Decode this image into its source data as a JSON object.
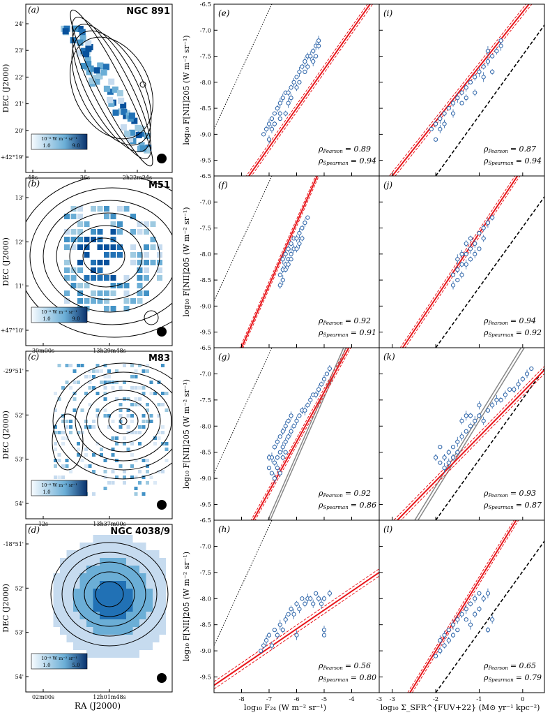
{
  "figure": {
    "x_axis_label_maps": "RA (J2000)",
    "y_axis_label_maps": "DEC (J2000)",
    "x_axis_label_mid": "log₁₀ F₂₄ (W m⁻² sr⁻¹)",
    "x_axis_label_right": "log₁₀ Σ_SFR^{FUV+22} (M⊙ yr⁻¹ kpc⁻²)",
    "y_axis_label_scatter": "log₁₀ F[NII]205 (W m⁻² sr⁻¹)",
    "colorbar_unit": "10⁻⁸ W m⁻² sr⁻¹"
  },
  "maps": [
    {
      "id": "a",
      "label": "(a)",
      "galaxy": "NGC 891",
      "dec_ticks": [
        "24'",
        "23'",
        "22'",
        "21'",
        "20'",
        "+42°19'"
      ],
      "ra_ticks": [
        "48s",
        "36s",
        "2h22m24s"
      ],
      "cbar_ticks": [
        "1.0",
        "9.0"
      ]
    },
    {
      "id": "b",
      "label": "(b)",
      "galaxy": "M51",
      "dec_ticks": [
        "13'",
        "12'",
        "11'",
        "+47°10'"
      ],
      "ra_ticks": [
        "30m00s",
        "13h29m48s"
      ],
      "cbar_ticks": [
        "1.0",
        "9.0"
      ]
    },
    {
      "id": "c",
      "label": "(c)",
      "galaxy": "M83",
      "dec_ticks": [
        "-29°51'",
        "52'",
        "53'",
        "54'"
      ],
      "ra_ticks": [
        "12s",
        "13h37m00s"
      ],
      "cbar_ticks": [
        "1.0"
      ]
    },
    {
      "id": "d",
      "label": "(d)",
      "galaxy": "NGC 4038/9",
      "dec_ticks": [
        "-18°51'",
        "52'",
        "53'",
        "54'"
      ],
      "ra_ticks": [
        "02m00s",
        "12h01m48s"
      ],
      "cbar_ticks": [
        "1.0",
        "5.0"
      ]
    }
  ],
  "chart_data": [
    {
      "type": "scatter",
      "panel": "(e)",
      "galaxy": "NGC 891",
      "x_quantity": "log10 F24",
      "xlim": [
        -9,
        -3
      ],
      "ylim": [
        -9.8,
        -6.5
      ],
      "pearson": "= 0.89",
      "spearman": "= 0.94",
      "fit": {
        "slope": 0.75,
        "intercept": -4.0
      },
      "points": [
        [
          -7.2,
          -9.0
        ],
        [
          -7.1,
          -8.9
        ],
        [
          -7.0,
          -8.8
        ],
        [
          -6.9,
          -8.7
        ],
        [
          -6.9,
          -8.9
        ],
        [
          -6.8,
          -8.6
        ],
        [
          -6.7,
          -8.5
        ],
        [
          -6.6,
          -8.4
        ],
        [
          -6.6,
          -8.6
        ],
        [
          -6.5,
          -8.3
        ],
        [
          -6.4,
          -8.2
        ],
        [
          -6.3,
          -8.2
        ],
        [
          -6.3,
          -8.4
        ],
        [
          -6.2,
          -8.1
        ],
        [
          -6.1,
          -8.0
        ],
        [
          -6.0,
          -7.9
        ],
        [
          -6.0,
          -8.1
        ],
        [
          -5.9,
          -7.8
        ],
        [
          -5.8,
          -7.7
        ],
        [
          -5.7,
          -7.6
        ],
        [
          -5.7,
          -7.8
        ],
        [
          -5.6,
          -7.5
        ],
        [
          -5.5,
          -7.5
        ],
        [
          -5.4,
          -7.4
        ],
        [
          -5.3,
          -7.3
        ],
        [
          -5.3,
          -7.5
        ],
        [
          -5.2,
          -7.3
        ],
        [
          -5.2,
          -7.2
        ],
        [
          -6.4,
          -8.6
        ],
        [
          -6.2,
          -8.3
        ],
        [
          -5.9,
          -8.0
        ],
        [
          -5.6,
          -7.7
        ],
        [
          -5.4,
          -7.6
        ],
        [
          -6.8,
          -8.8
        ],
        [
          -7.0,
          -9.1
        ],
        [
          -6.6,
          -8.7
        ]
      ]
    },
    {
      "type": "scatter",
      "panel": "(i)",
      "galaxy": "NGC 891",
      "x_quantity": "log10 SFR",
      "xlim": [
        -3.3,
        0.5
      ],
      "ylim": [
        -9.8,
        -6.5
      ],
      "pearson": "= 0.87",
      "spearman": "= 0.94",
      "fit": {
        "slope": 1.05,
        "intercept": -6.65
      },
      "points": [
        [
          -2.1,
          -8.9
        ],
        [
          -2.0,
          -8.8
        ],
        [
          -1.9,
          -8.7
        ],
        [
          -1.8,
          -8.6
        ],
        [
          -1.8,
          -8.8
        ],
        [
          -1.7,
          -8.5
        ],
        [
          -1.6,
          -8.4
        ],
        [
          -1.5,
          -8.3
        ],
        [
          -1.4,
          -8.2
        ],
        [
          -1.3,
          -8.1
        ],
        [
          -1.2,
          -8.0
        ],
        [
          -1.1,
          -7.9
        ],
        [
          -1.0,
          -7.8
        ],
        [
          -0.9,
          -7.7
        ],
        [
          -0.8,
          -7.6
        ],
        [
          -0.7,
          -7.5
        ],
        [
          -0.6,
          -7.4
        ],
        [
          -0.5,
          -7.3
        ],
        [
          -0.5,
          -7.2
        ],
        [
          -1.6,
          -8.6
        ],
        [
          -1.4,
          -8.4
        ],
        [
          -1.1,
          -8.2
        ],
        [
          -0.9,
          -7.9
        ],
        [
          -0.7,
          -7.8
        ],
        [
          -1.9,
          -8.9
        ],
        [
          -2.0,
          -9.1
        ],
        [
          -1.3,
          -8.3
        ],
        [
          -0.8,
          -7.4
        ]
      ]
    },
    {
      "type": "scatter",
      "panel": "(f)",
      "galaxy": "M51",
      "x_quantity": "log10 F24",
      "xlim": [
        -9,
        -3
      ],
      "ylim": [
        -9.8,
        -6.5
      ],
      "pearson": "= 0.92",
      "spearman": "= 0.91",
      "fit": {
        "slope": 1.2,
        "intercept": -0.2
      },
      "points": [
        [
          -6.6,
          -8.4
        ],
        [
          -6.5,
          -8.3
        ],
        [
          -6.5,
          -8.1
        ],
        [
          -6.4,
          -8.2
        ],
        [
          -6.4,
          -8.0
        ],
        [
          -6.3,
          -8.1
        ],
        [
          -6.3,
          -7.9
        ],
        [
          -6.2,
          -8.0
        ],
        [
          -6.2,
          -7.8
        ],
        [
          -6.1,
          -7.9
        ],
        [
          -6.1,
          -7.7
        ],
        [
          -6.0,
          -7.7
        ],
        [
          -5.9,
          -7.6
        ],
        [
          -5.8,
          -7.5
        ],
        [
          -5.7,
          -7.4
        ],
        [
          -5.6,
          -7.3
        ],
        [
          -6.6,
          -8.6
        ],
        [
          -6.5,
          -8.5
        ],
        [
          -6.4,
          -8.3
        ],
        [
          -6.3,
          -8.2
        ],
        [
          -6.2,
          -8.1
        ],
        [
          -6.0,
          -7.9
        ],
        [
          -5.9,
          -7.8
        ],
        [
          -5.8,
          -7.7
        ]
      ]
    },
    {
      "type": "scatter",
      "panel": "(j)",
      "galaxy": "M51",
      "x_quantity": "log10 SFR",
      "xlim": [
        -3.3,
        0.5
      ],
      "ylim": [
        -9.8,
        -6.5
      ],
      "pearson": "= 0.94",
      "spearman": "= 0.92",
      "fit": {
        "slope": 1.25,
        "intercept": -6.35
      },
      "points": [
        [
          -1.6,
          -8.4
        ],
        [
          -1.5,
          -8.3
        ],
        [
          -1.5,
          -8.1
        ],
        [
          -1.4,
          -8.2
        ],
        [
          -1.4,
          -8.0
        ],
        [
          -1.3,
          -8.0
        ],
        [
          -1.3,
          -7.8
        ],
        [
          -1.2,
          -7.9
        ],
        [
          -1.2,
          -7.7
        ],
        [
          -1.1,
          -7.8
        ],
        [
          -1.0,
          -7.6
        ],
        [
          -0.9,
          -7.5
        ],
        [
          -0.8,
          -7.4
        ],
        [
          -0.7,
          -7.3
        ],
        [
          -1.6,
          -8.6
        ],
        [
          -1.5,
          -8.5
        ],
        [
          -1.4,
          -8.4
        ],
        [
          -1.3,
          -8.2
        ],
        [
          -1.2,
          -8.1
        ],
        [
          -1.1,
          -8.0
        ],
        [
          -1.0,
          -7.9
        ],
        [
          -0.9,
          -7.7
        ]
      ]
    },
    {
      "type": "scatter",
      "panel": "(g)",
      "galaxy": "M83",
      "x_quantity": "log10 F24",
      "xlim": [
        -9,
        -3
      ],
      "ylim": [
        -9.8,
        -6.5
      ],
      "pearson": "= 0.92",
      "spearman": "= 0.86",
      "fit": {
        "slope": 0.95,
        "intercept": -2.6
      },
      "fit2": {
        "slope": 1.2,
        "intercept": -1.4
      },
      "points": [
        [
          -6.9,
          -8.9
        ],
        [
          -6.8,
          -8.7
        ],
        [
          -6.8,
          -9.0
        ],
        [
          -6.7,
          -8.6
        ],
        [
          -6.7,
          -8.8
        ],
        [
          -6.6,
          -8.5
        ],
        [
          -6.6,
          -8.9
        ],
        [
          -6.5,
          -8.4
        ],
        [
          -6.5,
          -8.6
        ],
        [
          -6.4,
          -8.3
        ],
        [
          -6.4,
          -8.5
        ],
        [
          -6.3,
          -8.2
        ],
        [
          -6.2,
          -8.1
        ],
        [
          -6.1,
          -8.0
        ],
        [
          -6.0,
          -7.9
        ],
        [
          -5.9,
          -7.8
        ],
        [
          -5.8,
          -7.7
        ],
        [
          -5.7,
          -7.7
        ],
        [
          -5.6,
          -7.6
        ],
        [
          -5.5,
          -7.5
        ],
        [
          -5.4,
          -7.4
        ],
        [
          -5.3,
          -7.4
        ],
        [
          -5.2,
          -7.3
        ],
        [
          -5.1,
          -7.2
        ],
        [
          -5.0,
          -7.1
        ],
        [
          -4.9,
          -7.0
        ],
        [
          -4.8,
          -6.9
        ],
        [
          -6.9,
          -8.6
        ],
        [
          -6.8,
          -8.4
        ],
        [
          -6.7,
          -8.3
        ],
        [
          -6.6,
          -8.2
        ],
        [
          -6.5,
          -8.1
        ],
        [
          -6.4,
          -8.0
        ],
        [
          -6.3,
          -7.9
        ],
        [
          -6.2,
          -7.8
        ],
        [
          -7.0,
          -8.8
        ],
        [
          -7.0,
          -8.6
        ]
      ]
    },
    {
      "type": "scatter",
      "panel": "(k)",
      "galaxy": "M83",
      "x_quantity": "log10 SFR",
      "xlim": [
        -3.3,
        0.5
      ],
      "ylim": [
        -9.8,
        -6.5
      ],
      "pearson": "= 0.93",
      "spearman": "= 0.87",
      "fit": {
        "slope": 0.85,
        "intercept": -7.35
      },
      "fit2": {
        "slope": 1.35,
        "intercept": -6.5
      },
      "points": [
        [
          -1.9,
          -8.7
        ],
        [
          -1.8,
          -8.6
        ],
        [
          -1.8,
          -8.8
        ],
        [
          -1.7,
          -8.5
        ],
        [
          -1.7,
          -8.7
        ],
        [
          -1.6,
          -8.4
        ],
        [
          -1.6,
          -8.6
        ],
        [
          -1.5,
          -8.3
        ],
        [
          -1.5,
          -8.5
        ],
        [
          -1.4,
          -8.2
        ],
        [
          -1.3,
          -8.1
        ],
        [
          -1.2,
          -8.0
        ],
        [
          -1.1,
          -7.9
        ],
        [
          -1.0,
          -7.8
        ],
        [
          -0.9,
          -7.9
        ],
        [
          -0.8,
          -7.7
        ],
        [
          -0.7,
          -7.6
        ],
        [
          -0.6,
          -7.5
        ],
        [
          -0.5,
          -7.5
        ],
        [
          -0.4,
          -7.4
        ],
        [
          -0.3,
          -7.3
        ],
        [
          -0.2,
          -7.3
        ],
        [
          -0.1,
          -7.2
        ],
        [
          0.0,
          -7.1
        ],
        [
          0.1,
          -7.0
        ],
        [
          0.2,
          -6.9
        ],
        [
          -1.4,
          -7.9
        ],
        [
          -1.3,
          -7.8
        ],
        [
          -1.2,
          -7.8
        ],
        [
          -1.0,
          -7.6
        ],
        [
          -1.9,
          -8.4
        ],
        [
          -2.0,
          -8.6
        ]
      ]
    },
    {
      "type": "scatter",
      "panel": "(h)",
      "galaxy": "NGC 4038/9",
      "x_quantity": "log10 F24",
      "xlim": [
        -9,
        -3
      ],
      "ylim": [
        -9.8,
        -6.5
      ],
      "pearson": "= 0.56",
      "spearman": "= 0.80",
      "fit": {
        "slope": 0.36,
        "intercept": -6.42
      },
      "points": [
        [
          -7.3,
          -9.0
        ],
        [
          -7.2,
          -8.9
        ],
        [
          -7.1,
          -8.8
        ],
        [
          -7.0,
          -8.7
        ],
        [
          -6.9,
          -8.9
        ],
        [
          -6.8,
          -8.6
        ],
        [
          -6.7,
          -8.7
        ],
        [
          -6.6,
          -8.5
        ],
        [
          -6.5,
          -8.6
        ],
        [
          -6.4,
          -8.4
        ],
        [
          -6.3,
          -8.3
        ],
        [
          -6.2,
          -8.2
        ],
        [
          -6.1,
          -8.3
        ],
        [
          -6.0,
          -8.1
        ],
        [
          -5.9,
          -8.2
        ],
        [
          -5.8,
          -8.0
        ],
        [
          -5.7,
          -8.1
        ],
        [
          -5.6,
          -8.0
        ],
        [
          -5.5,
          -8.0
        ],
        [
          -5.4,
          -8.1
        ],
        [
          -5.3,
          -7.9
        ],
        [
          -5.2,
          -8.0
        ],
        [
          -5.1,
          -8.1
        ],
        [
          -5.0,
          -8.0
        ],
        [
          -5.0,
          -8.6
        ],
        [
          -5.0,
          -8.7
        ],
        [
          -4.8,
          -7.9
        ],
        [
          -6.0,
          -8.7
        ]
      ]
    },
    {
      "type": "scatter",
      "panel": "(l)",
      "galaxy": "NGC 4038/9",
      "x_quantity": "log10 SFR",
      "xlim": [
        -3.3,
        0.5
      ],
      "ylim": [
        -9.8,
        -6.5
      ],
      "pearson": "= 0.65",
      "spearman": "= 0.79",
      "fit": {
        "slope": 1.35,
        "intercept": -6.3
      },
      "points": [
        [
          -2.0,
          -9.1
        ],
        [
          -1.9,
          -9.0
        ],
        [
          -1.9,
          -8.8
        ],
        [
          -1.8,
          -8.9
        ],
        [
          -1.8,
          -8.7
        ],
        [
          -1.7,
          -8.6
        ],
        [
          -1.7,
          -8.8
        ],
        [
          -1.6,
          -8.5
        ],
        [
          -1.6,
          -8.7
        ],
        [
          -1.5,
          -8.4
        ],
        [
          -1.5,
          -8.6
        ],
        [
          -1.4,
          -8.3
        ],
        [
          -1.3,
          -8.2
        ],
        [
          -1.2,
          -8.1
        ],
        [
          -1.1,
          -8.0
        ],
        [
          -1.0,
          -7.9
        ],
        [
          -0.9,
          -8.0
        ],
        [
          -0.8,
          -7.9
        ],
        [
          -0.8,
          -8.6
        ],
        [
          -0.7,
          -8.4
        ],
        [
          -1.3,
          -8.4
        ],
        [
          -1.1,
          -8.3
        ],
        [
          -1.2,
          -8.5
        ],
        [
          -1.0,
          -8.2
        ]
      ]
    }
  ]
}
